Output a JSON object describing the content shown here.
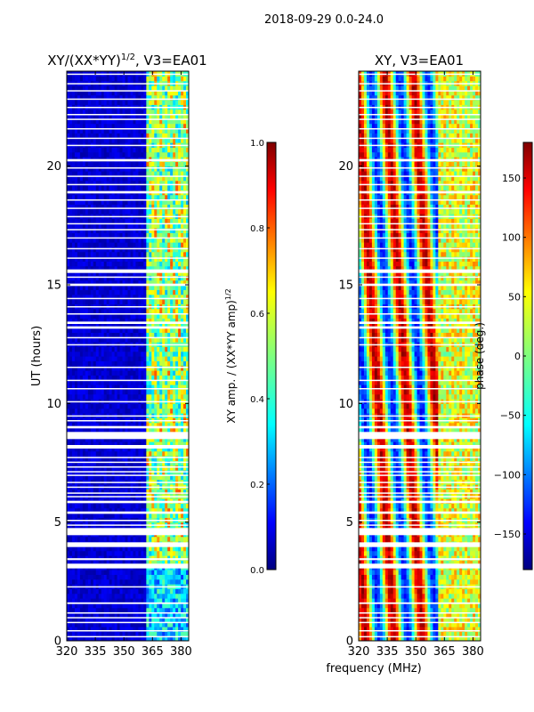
{
  "figure_title": "2018-09-29 0.0-24.0",
  "colors": {
    "gap": "#ffffff",
    "frame": "#000000",
    "jet": [
      "#00007f",
      "#0000ff",
      "#007fff",
      "#00ffff",
      "#7fff7f",
      "#ffff00",
      "#ff7f00",
      "#ff0000",
      "#7f0000"
    ]
  },
  "chart_data": [
    {
      "type": "heatmap",
      "title_main": "XY/(XX*YY)",
      "title_sup": "1/2",
      "title_tail": ", V3=EA01",
      "xlabel": "",
      "ylabel": "UT (hours)",
      "xlim": [
        320,
        384
      ],
      "ylim": [
        0,
        24
      ],
      "xticks": [
        320,
        335,
        350,
        365,
        380
      ],
      "yticks": [
        0,
        5,
        10,
        15,
        20
      ],
      "colorbar": {
        "label_main": "XY amp. / (XX*YY amp)",
        "label_sup": "1/2",
        "range": [
          0.0,
          1.0
        ],
        "ticks": [
          "0.0",
          "0.2",
          "0.4",
          "0.6",
          "0.8",
          "1.0"
        ]
      }
    },
    {
      "type": "heatmap",
      "title": "XY, V3=EA01",
      "xlabel": "frequency (MHz)",
      "ylabel": "",
      "xlim": [
        320,
        384
      ],
      "ylim": [
        0,
        24
      ],
      "xticks": [
        320,
        335,
        350,
        365,
        380
      ],
      "yticks": [
        0,
        5,
        10,
        15,
        20
      ],
      "colorbar": {
        "label": "phase (deg.)",
        "range": [
          -180,
          180
        ],
        "ticks": [
          "−150",
          "−100",
          "−50",
          "0",
          "50",
          "100",
          "150"
        ]
      }
    }
  ],
  "data_gaps_ut_hours": [
    [
      0.15,
      0.2
    ],
    [
      0.4,
      0.45
    ],
    [
      0.75,
      0.8
    ],
    [
      0.95,
      1.0
    ],
    [
      1.15,
      1.2
    ],
    [
      1.55,
      1.62
    ],
    [
      2.25,
      2.3
    ],
    [
      3.05,
      3.25
    ],
    [
      3.4,
      3.48
    ],
    [
      3.95,
      4.15
    ],
    [
      4.45,
      4.75
    ],
    [
      4.85,
      4.9
    ],
    [
      5.05,
      5.1
    ],
    [
      5.35,
      5.45
    ],
    [
      5.8,
      5.9
    ],
    [
      6.05,
      6.1
    ],
    [
      6.2,
      6.25
    ],
    [
      6.45,
      6.5
    ],
    [
      6.65,
      6.7
    ],
    [
      6.95,
      7.0
    ],
    [
      7.1,
      7.15
    ],
    [
      7.3,
      7.35
    ],
    [
      7.5,
      7.55
    ],
    [
      7.7,
      7.75
    ],
    [
      8.1,
      8.25
    ],
    [
      8.5,
      8.8
    ],
    [
      8.95,
      9.05
    ],
    [
      9.25,
      9.3
    ],
    [
      9.45,
      9.5
    ],
    [
      10.05,
      10.1
    ],
    [
      10.6,
      10.65
    ],
    [
      10.95,
      11.0
    ],
    [
      11.5,
      11.55
    ],
    [
      12.45,
      12.5
    ],
    [
      12.75,
      12.8
    ],
    [
      13.15,
      13.25
    ],
    [
      13.35,
      13.45
    ],
    [
      13.75,
      13.8
    ],
    [
      14.05,
      14.1
    ],
    [
      14.4,
      14.45
    ],
    [
      14.95,
      15.05
    ],
    [
      15.3,
      15.35
    ],
    [
      15.5,
      15.65
    ],
    [
      16.1,
      16.15
    ],
    [
      16.5,
      16.55
    ],
    [
      16.95,
      17.0
    ],
    [
      17.3,
      17.35
    ],
    [
      17.55,
      17.6
    ],
    [
      17.85,
      17.9
    ],
    [
      18.2,
      18.25
    ],
    [
      18.55,
      18.6
    ],
    [
      18.85,
      18.95
    ],
    [
      19.2,
      19.25
    ],
    [
      19.55,
      19.6
    ],
    [
      19.9,
      19.95
    ],
    [
      20.2,
      20.3
    ],
    [
      20.85,
      20.9
    ],
    [
      21.15,
      21.2
    ],
    [
      21.55,
      21.6
    ],
    [
      21.95,
      22.0
    ],
    [
      22.15,
      22.2
    ],
    [
      22.45,
      22.5
    ],
    [
      22.8,
      22.85
    ],
    [
      23.15,
      23.2
    ],
    [
      23.45,
      23.5
    ],
    [
      23.85,
      23.9
    ]
  ]
}
